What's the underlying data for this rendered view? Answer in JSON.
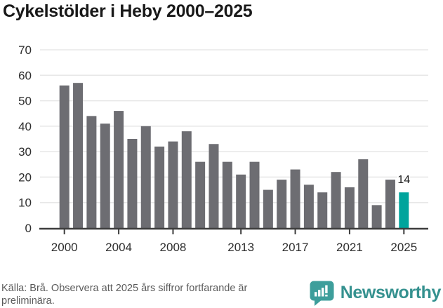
{
  "title": "Cykelstölder i Heby 2000–2025",
  "chart_data": {
    "type": "bar",
    "title": "Cykelstölder i Heby 2000–2025",
    "x": [
      2000,
      2001,
      2002,
      2003,
      2004,
      2005,
      2006,
      2007,
      2008,
      2009,
      2010,
      2011,
      2012,
      2013,
      2014,
      2015,
      2016,
      2017,
      2018,
      2019,
      2020,
      2021,
      2022,
      2023,
      2024,
      2025
    ],
    "values": [
      56,
      57,
      44,
      41,
      46,
      35,
      40,
      32,
      34,
      38,
      26,
      33,
      26,
      21,
      26,
      15,
      19,
      23,
      17,
      14,
      22,
      16,
      27,
      9,
      19,
      14
    ],
    "ylabel": "",
    "xlabel": "",
    "ylim": [
      0,
      70
    ],
    "y_ticks": [
      0,
      10,
      20,
      30,
      40,
      50,
      60,
      70
    ],
    "x_tick_years": [
      2000,
      2004,
      2008,
      2013,
      2017,
      2021,
      2025
    ],
    "x_tick_labels": [
      "2000",
      "2004",
      "2008",
      "2013",
      "2017",
      "2021",
      "2025"
    ],
    "grid": "horizontal",
    "legend": "none",
    "highlight_index": 25,
    "annotation": {
      "index": 25,
      "label": "14"
    },
    "colors": {
      "bar": "#6d6d72",
      "highlight": "#00a49c",
      "grid": "#e7e7e7",
      "axis": "#3d3d3d",
      "tick_label": "#2e2e2e",
      "annotation": "#1d1d1d"
    }
  },
  "footer": {
    "source_note": "Källa: Brå. Observera att 2025 års siffror fortfarande är preliminära.",
    "brand": "Newsworthy",
    "brand_color": "#35918f",
    "logo_color": "#3d9e9b",
    "logo_icon": "newsworthy-speech-bubble-bars-icon"
  }
}
